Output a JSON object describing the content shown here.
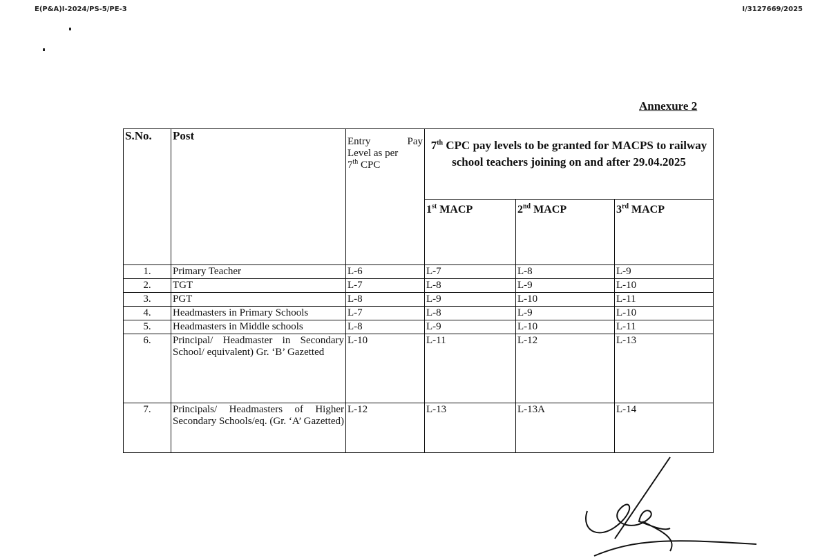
{
  "header": {
    "ref_left": "E(P&A)I-2024/PS-5/PE-3",
    "ref_right": "I/3127669/2025"
  },
  "annexure_title": "Annexure 2",
  "table": {
    "headers": {
      "sno": "S.No.",
      "post": "Post",
      "entry_pay": {
        "line1": "Entry Pay",
        "line2": "Level as per",
        "num": "7",
        "sup": "th",
        "rest": " CPC"
      },
      "group": {
        "num": "7",
        "sup": "th",
        "rest": " CPC pay levels to be granted for MACPS to railway school teachers joining on and after 29.04.2025"
      },
      "macp": [
        {
          "num": "1",
          "sup": "st",
          "rest": " MACP"
        },
        {
          "num": "2",
          "sup": "nd",
          "rest": " MACP"
        },
        {
          "num": "3",
          "sup": "rd",
          "rest": " MACP"
        }
      ]
    },
    "rows": [
      {
        "sno": "1.",
        "post": "Primary Teacher",
        "entry": "L-6",
        "m1": "L-7",
        "m2": "L-8",
        "m3": "L-9"
      },
      {
        "sno": "2.",
        "post": "TGT",
        "entry": "L-7",
        "m1": "L-8",
        "m2": "L-9",
        "m3": "L-10"
      },
      {
        "sno": "3.",
        "post": "PGT",
        "entry": "L-8",
        "m1": "L-9",
        "m2": "L-10",
        "m3": "L-11"
      },
      {
        "sno": "4.",
        "post": "Headmasters in Primary Schools",
        "entry": "L-7",
        "m1": "L-8",
        "m2": "L-9",
        "m3": "L-10"
      },
      {
        "sno": "5.",
        "post": "Headmasters in Middle schools",
        "entry": "L-8",
        "m1": "L-9",
        "m2": "L-10",
        "m3": "L-11"
      },
      {
        "sno": "6.",
        "post": "Principal/ Headmaster in Secondary School/ equivalent) Gr. ‘B’ Gazetted",
        "entry": "L-10",
        "m1": "L-11",
        "m2": "L-12",
        "m3": "L-13"
      },
      {
        "sno": "7.",
        "post": "Principals/ Headmasters of Higher Secondary Schools/eq. (Gr. ‘A’ Gazetted)",
        "entry": "L-12",
        "m1": "L-13",
        "m2": "L-13A",
        "m3": "L-14"
      }
    ]
  }
}
